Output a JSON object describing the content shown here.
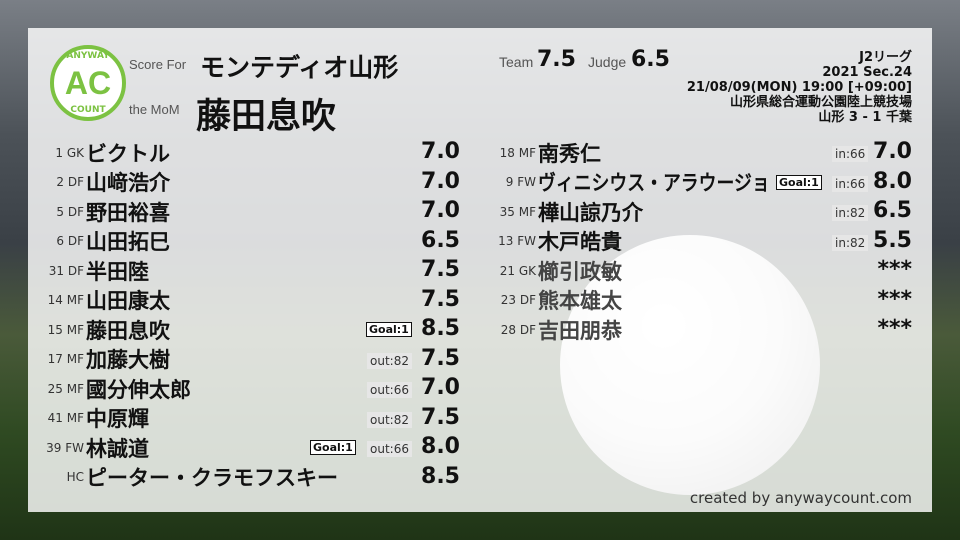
{
  "header": {
    "score_for_label": "Score For",
    "team": "モンテディオ山形",
    "mom_label": "the MoM",
    "mom": "藤田息吹",
    "team_label": "Team",
    "team_score": "7.5",
    "judge_label": "Judge",
    "judge_score": "6.5",
    "logo": {
      "top": "ANYWAY",
      "mid": "AC",
      "bottom": "COUNT"
    },
    "info": [
      "J2リーグ",
      "2021 Sec.24",
      "21/08/09(MON) 19:00 [+09:00]",
      "山形県総合運動公園陸上競技場",
      "山形 3 - 1 千葉"
    ]
  },
  "left": [
    {
      "num": "1 GK",
      "name": "ビクトル",
      "score": "7.0",
      "sub": "",
      "goal": ""
    },
    {
      "num": "2 DF",
      "name": "山﨑浩介",
      "score": "7.0",
      "sub": "",
      "goal": ""
    },
    {
      "num": "5 DF",
      "name": "野田裕喜",
      "score": "7.0",
      "sub": "",
      "goal": ""
    },
    {
      "num": "6 DF",
      "name": "山田拓巳",
      "score": "6.5",
      "sub": "",
      "goal": ""
    },
    {
      "num": "31 DF",
      "name": "半田陸",
      "score": "7.5",
      "sub": "",
      "goal": ""
    },
    {
      "num": "14 MF",
      "name": "山田康太",
      "score": "7.5",
      "sub": "",
      "goal": ""
    },
    {
      "num": "15 MF",
      "name": "藤田息吹",
      "score": "8.5",
      "sub": "",
      "goal": "Goal:1"
    },
    {
      "num": "17 MF",
      "name": "加藤大樹",
      "score": "7.5",
      "sub": "out:82",
      "goal": ""
    },
    {
      "num": "25 MF",
      "name": "國分伸太郎",
      "score": "7.0",
      "sub": "out:66",
      "goal": ""
    },
    {
      "num": "41 MF",
      "name": "中原輝",
      "score": "7.5",
      "sub": "out:82",
      "goal": ""
    },
    {
      "num": "39 FW",
      "name": "林誠道",
      "score": "8.0",
      "sub": "out:66",
      "goal": "Goal:1"
    },
    {
      "num": "HC",
      "name": "ピーター・クラモフスキー",
      "score": "8.5",
      "sub": "",
      "goal": ""
    }
  ],
  "right": [
    {
      "num": "18 MF",
      "name": "南秀仁",
      "score": "7.0",
      "sub": "in:66",
      "goal": ""
    },
    {
      "num": "9 FW",
      "name": "ヴィニシウス・アラウージョ",
      "score": "8.0",
      "sub": "in:66",
      "goal": "Goal:1"
    },
    {
      "num": "35 MF",
      "name": "樺山諒乃介",
      "score": "6.5",
      "sub": "in:82",
      "goal": ""
    },
    {
      "num": "13 FW",
      "name": "木戸皓貴",
      "score": "5.5",
      "sub": "in:82",
      "goal": ""
    },
    {
      "num": "21 GK",
      "name": "櫛引政敏",
      "score": "***",
      "sub": "",
      "goal": ""
    },
    {
      "num": "23 DF",
      "name": "熊本雄太",
      "score": "***",
      "sub": "",
      "goal": ""
    },
    {
      "num": "28 DF",
      "name": "吉田朋恭",
      "score": "***",
      "sub": "",
      "goal": ""
    }
  ],
  "credit": "created by anywaycount.com"
}
